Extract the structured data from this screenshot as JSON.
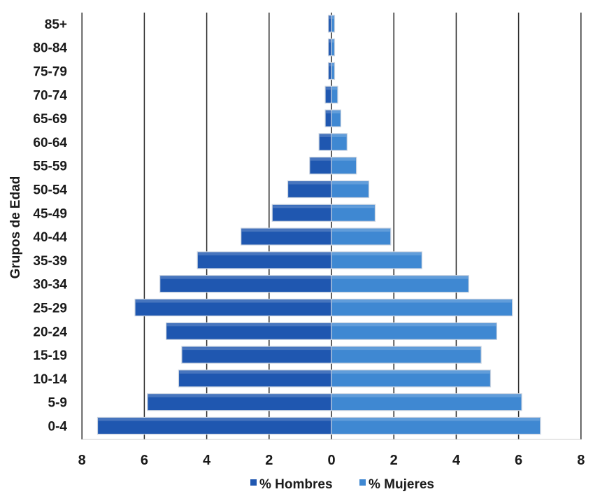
{
  "chart_data": {
    "type": "bar",
    "orientation": "horizontal",
    "style": "population-pyramid",
    "ylabel": "Grupos de Edad",
    "xlabel": "",
    "xlim": [
      -8,
      8
    ],
    "xticks": [
      8,
      6,
      4,
      2,
      0,
      2,
      4,
      6,
      8
    ],
    "grid": true,
    "legend_position": "bottom",
    "categories": [
      "85+",
      "80-84",
      "75-79",
      "70-74",
      "65-69",
      "60-64",
      "55-59",
      "50-54",
      "45-49",
      "40-44",
      "35-39",
      "30-34",
      "25-29",
      "20-24",
      "15-19",
      "10-14",
      "5-9",
      "0-4"
    ],
    "series": [
      {
        "name": "% Hombres",
        "side": "left",
        "color": "#1f57b0",
        "values": [
          0.1,
          0.1,
          0.1,
          0.2,
          0.2,
          0.4,
          0.7,
          1.4,
          1.9,
          2.9,
          4.3,
          5.5,
          6.3,
          5.3,
          4.8,
          4.9,
          5.9,
          7.5
        ]
      },
      {
        "name": "% Mujeres",
        "side": "right",
        "color": "#3f88d2",
        "values": [
          0.1,
          0.1,
          0.1,
          0.2,
          0.3,
          0.5,
          0.8,
          1.2,
          1.4,
          1.9,
          2.9,
          4.4,
          5.8,
          5.3,
          4.8,
          5.1,
          6.1,
          6.7
        ]
      }
    ]
  }
}
